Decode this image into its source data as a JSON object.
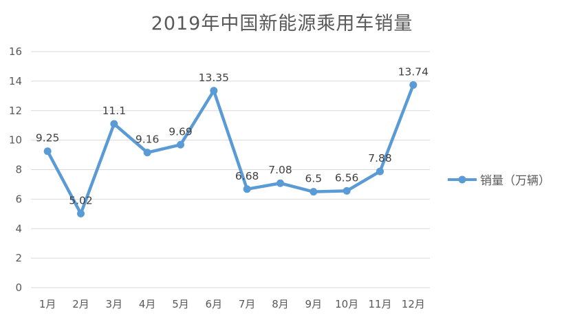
{
  "chart_data": {
    "type": "line",
    "title": "2019年中国新能源乘用车销量",
    "categories": [
      "1月",
      "2月",
      "3月",
      "4月",
      "5月",
      "6月",
      "7月",
      "8月",
      "9月",
      "10月",
      "11月",
      "12月"
    ],
    "series": [
      {
        "name": "销量（万辆）",
        "values": [
          9.25,
          5.02,
          11.1,
          9.16,
          9.69,
          13.35,
          6.68,
          7.08,
          6.5,
          6.56,
          7.88,
          13.74
        ]
      }
    ],
    "data_labels": [
      "9.25",
      "5.02",
      "11.1",
      "9.16",
      "9.69",
      "13.35",
      "6.68",
      "7.08",
      "6.5",
      "6.56",
      "7.88",
      "13.74"
    ],
    "xlabel": "",
    "ylabel": "",
    "ylim": [
      0,
      16
    ],
    "ytick_step": 2,
    "grid": "horizontal",
    "legend_position": "right",
    "marker": "circle",
    "colors": {
      "series": "#5B9BD5",
      "title": "#595959",
      "axis_labels": "#595959",
      "data_labels": "#404040",
      "gridline": "#D9D9D9",
      "background": "#FFFFFF"
    }
  }
}
